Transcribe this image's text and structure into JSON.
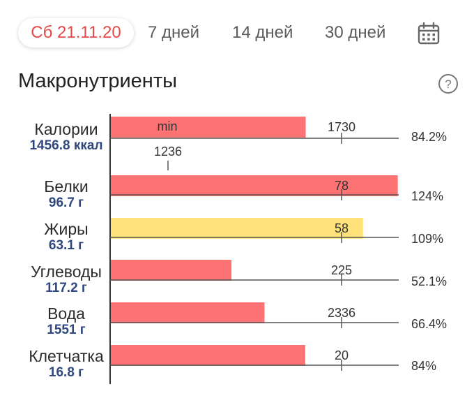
{
  "tabs": [
    {
      "label": "Сб 21.11.20",
      "active": true
    },
    {
      "label": "7 дней",
      "active": false
    },
    {
      "label": "14 дней",
      "active": false
    },
    {
      "label": "30 дней",
      "active": false
    }
  ],
  "icons": {
    "calendar": "calendar-icon",
    "help": "help-icon"
  },
  "section_title": "Макронутриенты",
  "colors": {
    "red_bar": "#fd7272",
    "yellow_bar": "#ffe17a",
    "accent": "#e44a49",
    "value": "#2f4780"
  },
  "chart_data": {
    "type": "bar",
    "orientation": "horizontal",
    "categories": [
      "Калории",
      "Белки",
      "Жиры",
      "Углеводы",
      "Вода",
      "Клетчатка"
    ],
    "values": [
      1456.8,
      96.7,
      63.1,
      117.2,
      1551,
      16.8
    ],
    "value_labels": [
      "1456.8 ккал",
      "96.7 г",
      "63.1 г",
      "117.2 г",
      "1551 г",
      "16.8 г"
    ],
    "targets": [
      1730,
      78,
      58,
      225,
      2336,
      20
    ],
    "percent_labels": [
      "84.2%",
      "124%",
      "109%",
      "52.1%",
      "66.4%",
      "84%"
    ],
    "percents": [
      84.2,
      124,
      109,
      52.1,
      66.4,
      84
    ],
    "bar_colors": [
      "red",
      "red",
      "yellow",
      "red",
      "red",
      "red"
    ],
    "min_label": "min",
    "min_value": 1236,
    "extra_min_marker": {
      "row": 0,
      "value": 1236
    }
  }
}
